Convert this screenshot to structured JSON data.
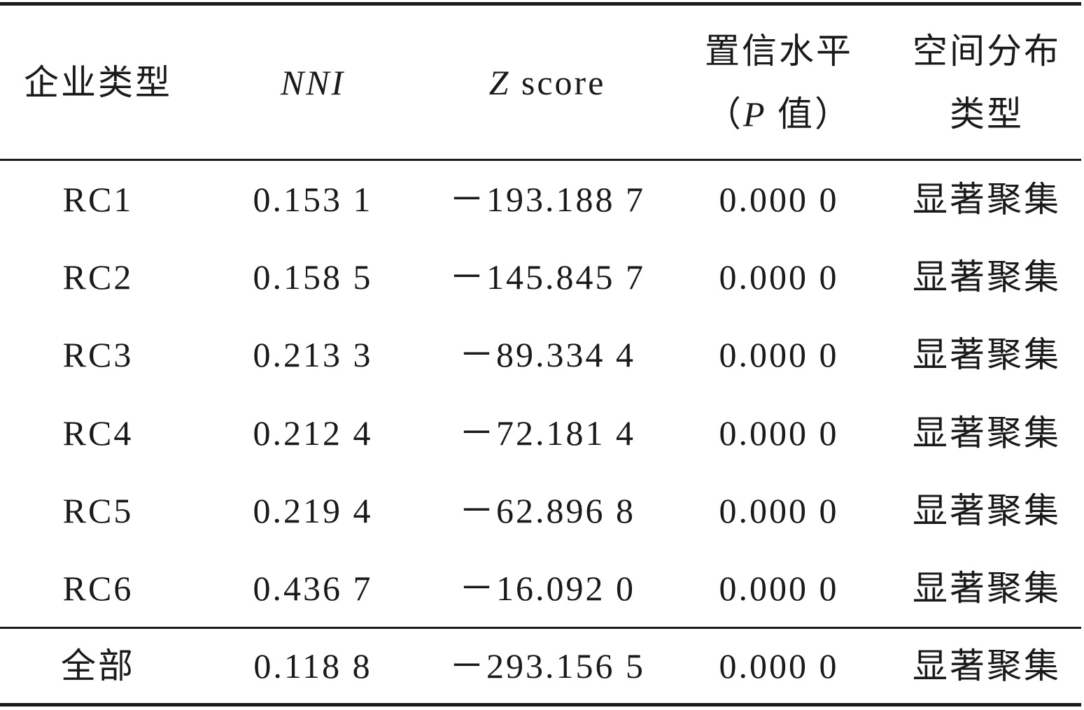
{
  "table": {
    "header": [
      [
        [
          {
            "text": "企业类型"
          }
        ]
      ],
      [
        [
          {
            "text": "NNI",
            "italic": true
          }
        ]
      ],
      [
        [
          {
            "text": "Z",
            "italic": true
          },
          {
            "text": " score"
          }
        ]
      ],
      [
        [
          {
            "text": "置信水平"
          }
        ],
        [
          {
            "text": "（"
          },
          {
            "text": "P",
            "italic": true
          },
          {
            "text": " 值）"
          }
        ]
      ],
      [
        [
          {
            "text": "空间分布"
          }
        ],
        [
          {
            "text": "类型"
          }
        ]
      ]
    ],
    "rows": [
      [
        "RC1",
        "0.153 1",
        "－193.188 7",
        "0.000 0",
        "显著聚集"
      ],
      [
        "RC2",
        "0.158 5",
        "－145.845 7",
        "0.000 0",
        "显著聚集"
      ],
      [
        "RC3",
        "0.213 3",
        "－89.334 4",
        "0.000 0",
        "显著聚集"
      ],
      [
        "RC4",
        "0.212 4",
        "－72.181 4",
        "0.000 0",
        "显著聚集"
      ],
      [
        "RC5",
        "0.219 4",
        "－62.896 8",
        "0.000 0",
        "显著聚集"
      ],
      [
        "RC6",
        "0.436 7",
        "－16.092 0",
        "0.000 0",
        "显著聚集"
      ]
    ],
    "total": [
      "全部",
      "0.118 8",
      "－293.156 5",
      "0.000 0",
      "显著聚集"
    ]
  }
}
